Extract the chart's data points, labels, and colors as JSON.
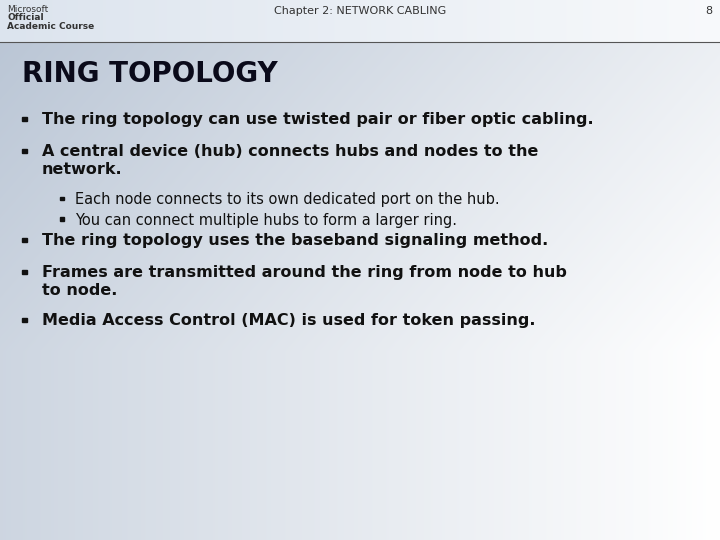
{
  "header_text": "Chapter 2: NETWORK CABLING",
  "page_number": "8",
  "logo_lines": [
    "Microsoft",
    "Official",
    "Academic Course"
  ],
  "title": "RING TOPOLOGY",
  "bullets": [
    {
      "level": 0,
      "text": "The ring topology can use twisted pair or fiber optic cabling.",
      "bold": true
    },
    {
      "level": 0,
      "text": "A central device (hub) connects hubs and nodes to the\nnetwork.",
      "bold": true
    },
    {
      "level": 1,
      "text": "Each node connects to its own dedicated port on the hub.",
      "bold": false
    },
    {
      "level": 1,
      "text": "You can connect multiple hubs to form a larger ring.",
      "bold": false
    },
    {
      "level": 0,
      "text": "The ring topology uses the baseband signaling method.",
      "bold": true
    },
    {
      "level": 0,
      "text": "Frames are transmitted around the ring from node to hub\nto node.",
      "bold": true
    },
    {
      "level": 0,
      "text": "Media Access Control (MAC) is used for token passing.",
      "bold": true
    }
  ],
  "bg_color_left": "#b8c4d4",
  "bg_color_right": "#f0f4f8",
  "header_bg": "#dce4ee",
  "header_line_color": "#555555",
  "title_color": "#0a0a1a",
  "text_color": "#111111",
  "header_color": "#333333",
  "title_fontsize": 20,
  "bullet_fontsize": 11.5,
  "subbullet_fontsize": 10.5,
  "header_fontsize": 8,
  "logo_fontsize": 6.5,
  "fig_width": 7.2,
  "fig_height": 5.4,
  "dpi": 100
}
